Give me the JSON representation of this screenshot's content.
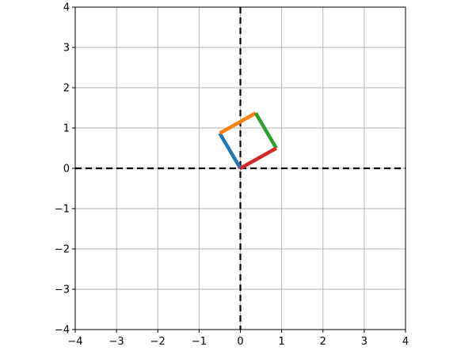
{
  "chart_data": {
    "type": "line",
    "title": "",
    "xlabel": "",
    "ylabel": "",
    "xlim": [
      -4,
      4
    ],
    "ylim": [
      -4,
      4
    ],
    "grid": true,
    "aspect": "equal",
    "x_ticks": [
      -4,
      -3,
      -2,
      -1,
      0,
      1,
      2,
      3,
      4
    ],
    "y_ticks": [
      -4,
      -3,
      -2,
      -1,
      0,
      1,
      2,
      3,
      4
    ],
    "x_tick_labels": [
      "−4",
      "−3",
      "−2",
      "−1",
      "0",
      "1",
      "2",
      "3",
      "4"
    ],
    "y_tick_labels": [
      "−4",
      "−3",
      "−2",
      "−1",
      "0",
      "1",
      "2",
      "3",
      "4"
    ],
    "reference_lines": [
      {
        "orientation": "horizontal",
        "y": 0,
        "style": "dashed",
        "color": "#000000"
      },
      {
        "orientation": "vertical",
        "x": 0,
        "style": "dashed",
        "color": "#000000"
      }
    ],
    "series": [
      {
        "color": "#1f77b4",
        "x": [
          0,
          -0.5
        ],
        "y": [
          0,
          0.87
        ]
      },
      {
        "color": "#ff7f0e",
        "x": [
          -0.5,
          0.37
        ],
        "y": [
          0.87,
          1.37
        ]
      },
      {
        "color": "#2ca02c",
        "x": [
          0.37,
          0.87
        ],
        "y": [
          1.37,
          0.5
        ]
      },
      {
        "color": "#d62728",
        "x": [
          0.87,
          0
        ],
        "y": [
          0.5,
          0
        ]
      }
    ]
  }
}
